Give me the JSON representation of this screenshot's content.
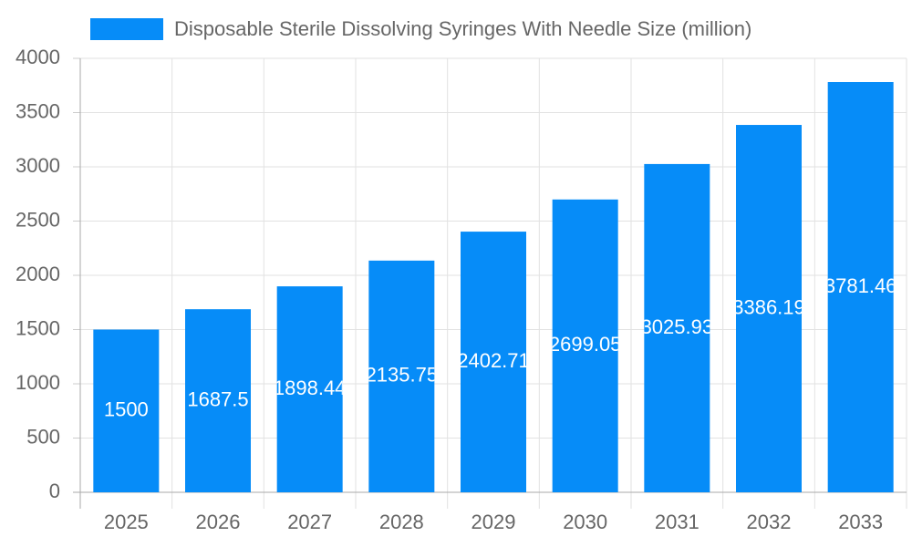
{
  "chart_data": {
    "type": "bar",
    "legend": "Disposable Sterile Dissolving Syringes With Needle Size (million)",
    "categories": [
      "2025",
      "2026",
      "2027",
      "2028",
      "2029",
      "2030",
      "2031",
      "2032",
      "2033"
    ],
    "values": [
      1500,
      1687.5,
      1898.44,
      2135.75,
      2402.71,
      2699.05,
      3025.93,
      3386.19,
      3781.46
    ],
    "color": "#068cf8",
    "ylim": [
      0,
      4000
    ],
    "yticks": [
      0,
      500,
      1000,
      1500,
      2000,
      2500,
      3000,
      3500,
      4000
    ],
    "grid": true
  }
}
